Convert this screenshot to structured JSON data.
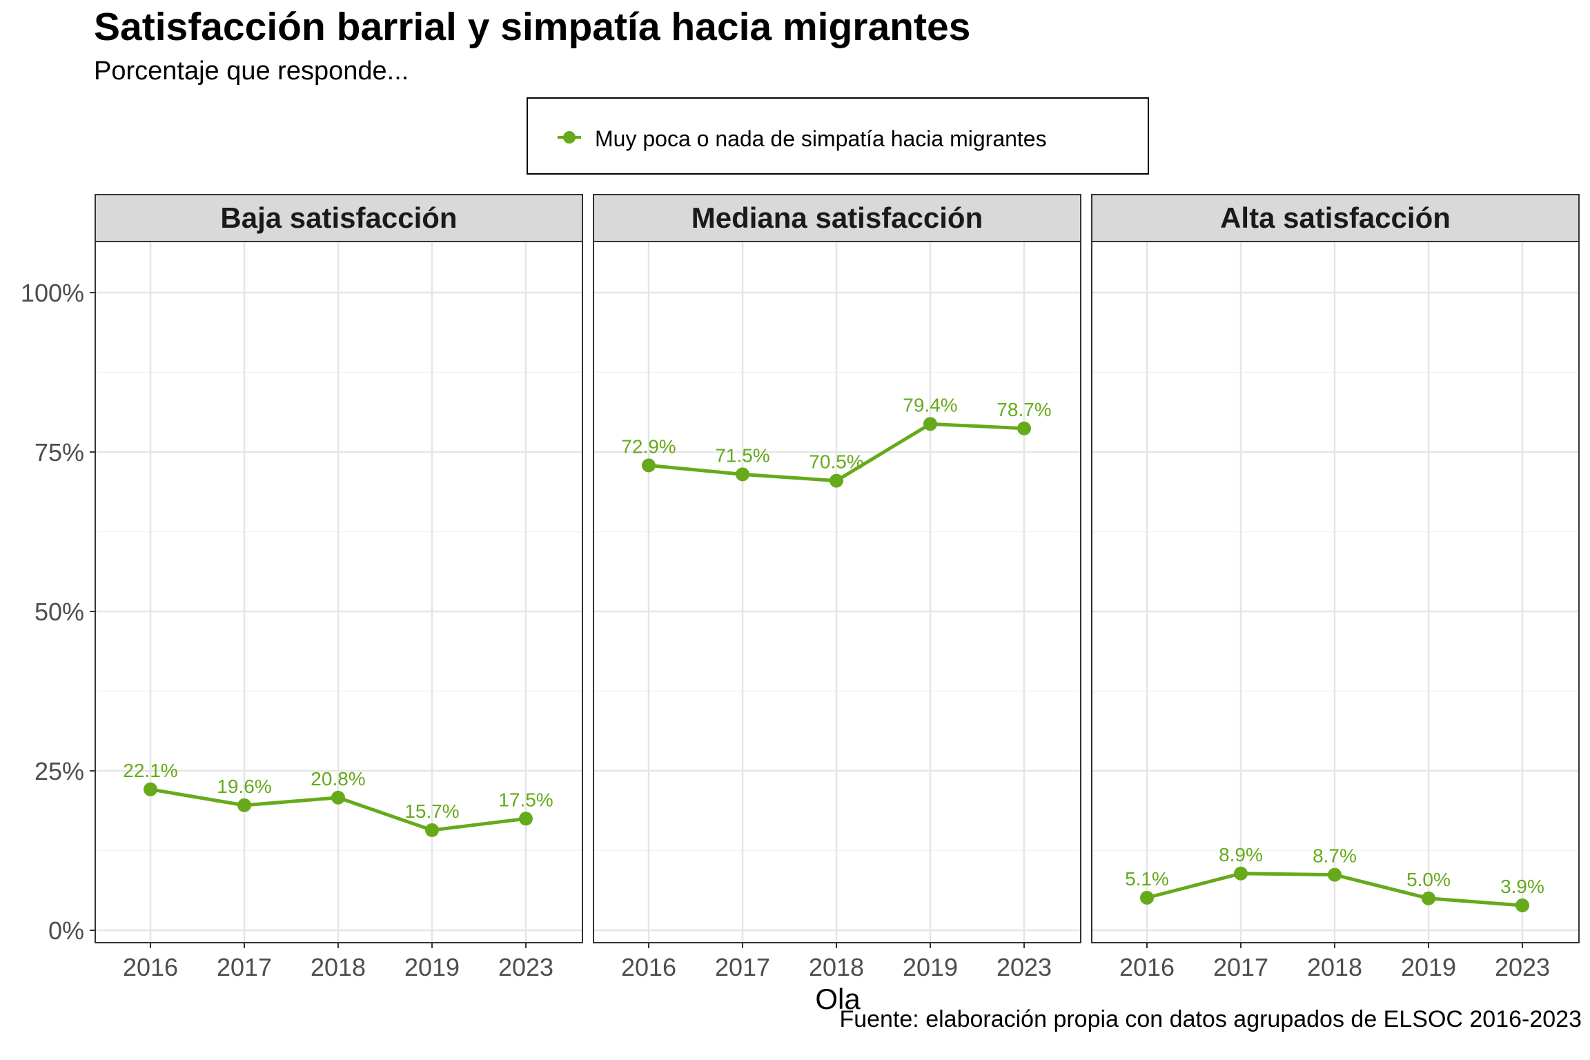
{
  "title": "Satisfacción barrial y simpatía hacia migrantes",
  "subtitle": "Porcentaje que responde...",
  "caption": "Fuente: elaboración propia con datos agrupados de ELSOC 2016-2023",
  "chart_data": {
    "type": "line",
    "facet_by": "panel",
    "x_label": "Ola",
    "categories": [
      "2016",
      "2017",
      "2018",
      "2019",
      "2023"
    ],
    "y_ticks": [
      "0%",
      "25%",
      "50%",
      "75%",
      "100%"
    ],
    "ylim": [
      0,
      100
    ],
    "grid": true,
    "legend_position": "top",
    "series_name": "Muy poca o nada de simpatía hacia migrantes",
    "series_color": "#66AA1B",
    "panels": [
      {
        "name": "Baja satisfacción",
        "values": [
          22.1,
          19.6,
          20.8,
          15.7,
          17.5
        ],
        "labels": [
          "22.1%",
          "19.6%",
          "20.8%",
          "15.7%",
          "17.5%"
        ]
      },
      {
        "name": "Mediana satisfacción",
        "values": [
          72.9,
          71.5,
          70.5,
          79.4,
          78.7
        ],
        "labels": [
          "72.9%",
          "71.5%",
          "70.5%",
          "79.4%",
          "78.7%"
        ]
      },
      {
        "name": "Alta satisfacción",
        "values": [
          5.1,
          8.9,
          8.7,
          5.0,
          3.9
        ],
        "labels": [
          "5.1%",
          "8.9%",
          "8.7%",
          "5.0%",
          "3.9%"
        ]
      }
    ]
  }
}
